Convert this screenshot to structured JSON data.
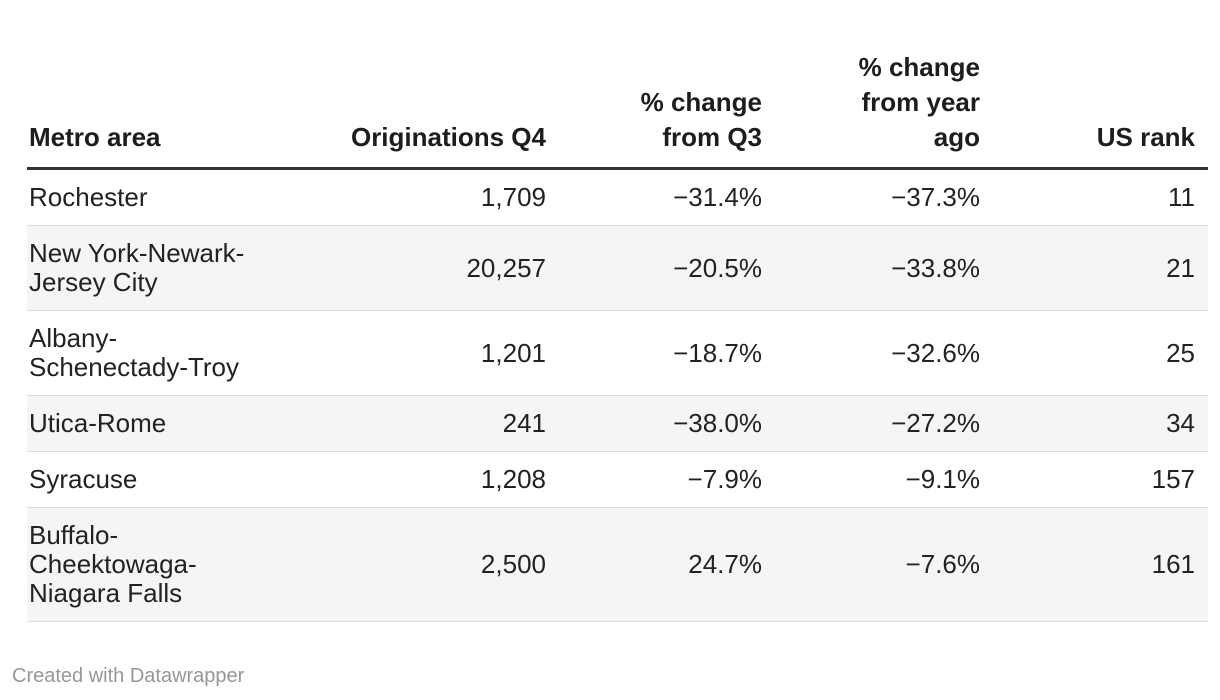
{
  "table": {
    "columns": [
      {
        "id": "metro-area",
        "label": "Metro area",
        "align": "left"
      },
      {
        "id": "originations-q4",
        "label": "Originations Q4",
        "align": "right"
      },
      {
        "id": "pct-change-from-q3",
        "label": "% change from Q3",
        "align": "right"
      },
      {
        "id": "pct-change-from-year-ago",
        "label": "% change from year ago",
        "align": "right"
      },
      {
        "id": "us-rank",
        "label": "US rank",
        "align": "right"
      }
    ],
    "rows": [
      [
        "Rochester",
        "1,709",
        "−31.4%",
        "−37.3%",
        "11"
      ],
      [
        "New York-Newark-Jersey City",
        "20,257",
        "−20.5%",
        "−33.8%",
        "21"
      ],
      [
        "Albany-Schenectady-Troy",
        "1,201",
        "−18.7%",
        "−32.6%",
        "25"
      ],
      [
        "Utica-Rome",
        "241",
        "−38.0%",
        "−27.2%",
        "34"
      ],
      [
        "Syracuse",
        "1,208",
        "−7.9%",
        "−9.1%",
        "157"
      ],
      [
        "Buffalo-Cheektowaga-Niagara Falls",
        "2,500",
        "24.7%",
        "−7.6%",
        "161"
      ]
    ]
  },
  "footer": {
    "credit": "Created with Datawrapper"
  },
  "colors": {
    "text": "#222222",
    "header_text": "#1d1d1d",
    "stripe": "#f5f5f5",
    "header_border": "#333333",
    "row_border": "#dcdcdc",
    "credit": "#979797",
    "bg": "#ffffff"
  },
  "chart_data": {
    "type": "table",
    "columns": [
      "Metro area",
      "Originations Q4",
      "% change from Q3",
      "% change from year ago",
      "US rank"
    ],
    "rows": [
      {
        "metro_area": "Rochester",
        "originations_q4": 1709,
        "pct_change_from_q3": -31.4,
        "pct_change_from_year_ago": -37.3,
        "us_rank": 11
      },
      {
        "metro_area": "New York-Newark-Jersey City",
        "originations_q4": 20257,
        "pct_change_from_q3": -20.5,
        "pct_change_from_year_ago": -33.8,
        "us_rank": 21
      },
      {
        "metro_area": "Albany-Schenectady-Troy",
        "originations_q4": 1201,
        "pct_change_from_q3": -18.7,
        "pct_change_from_year_ago": -32.6,
        "us_rank": 25
      },
      {
        "metro_area": "Utica-Rome",
        "originations_q4": 241,
        "pct_change_from_q3": -38.0,
        "pct_change_from_year_ago": -27.2,
        "us_rank": 34
      },
      {
        "metro_area": "Syracuse",
        "originations_q4": 1208,
        "pct_change_from_q3": -7.9,
        "pct_change_from_year_ago": -9.1,
        "us_rank": 157
      },
      {
        "metro_area": "Buffalo-Cheektowaga-Niagara Falls",
        "originations_q4": 2500,
        "pct_change_from_q3": 24.7,
        "pct_change_from_year_ago": -7.6,
        "us_rank": 161
      }
    ],
    "layout": {
      "striped_rows": true,
      "header_rule": true,
      "numeric_columns_right_aligned": true
    }
  }
}
